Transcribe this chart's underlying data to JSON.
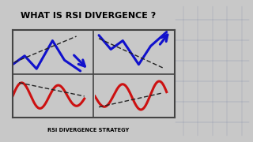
{
  "title": "WHAT IS RSI DIVERGENCE ?",
  "title_bg": "#EEEE00",
  "title_color": "#000000",
  "subtitle": "RSI DIVERGENCE STRATEGY",
  "subtitle_bg": "#DDDD00",
  "subtitle_color": "#000000",
  "bg_color": "#C8C8C8",
  "panel_bg": "#FFFFFF",
  "blue_color": "#1111CC",
  "red_color": "#CC1111",
  "dashed_color": "#222222",
  "border_color": "#444444",
  "person_bg": "#1a1835",
  "person_right_bg": "#2a0a0a"
}
